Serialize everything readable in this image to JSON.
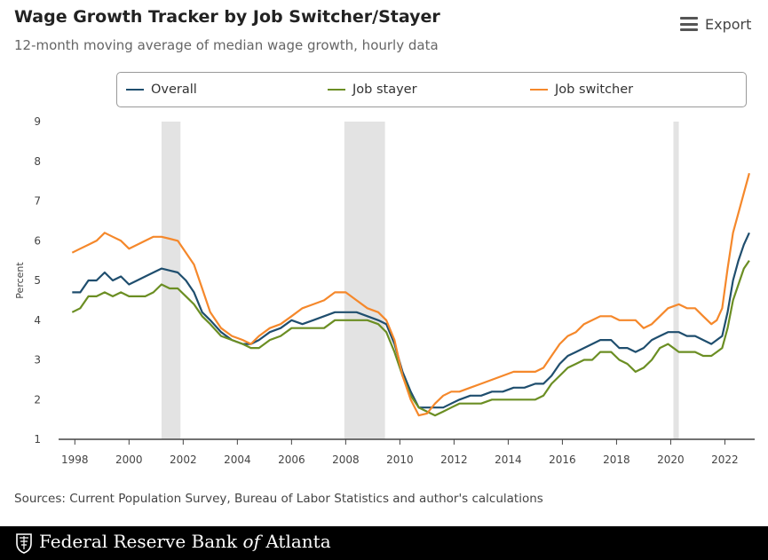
{
  "header": {
    "title": "Wage Growth Tracker by Job Switcher/Stayer",
    "subtitle": "12-month moving average of median wage growth, hourly data",
    "export_label": "Export"
  },
  "footer": {
    "sources": "Sources: Current Population Survey, Bureau of Labor Statistics and author's calculations",
    "bank_prefix": "Federal Reserve Bank ",
    "bank_of": "of",
    "bank_suffix": " Atlanta"
  },
  "colors": {
    "overall": "#1f4e6e",
    "stayer": "#6b8e23",
    "switcher": "#f5882b",
    "recession": "#e3e3e3"
  },
  "chart_data": {
    "type": "line",
    "title": "Wage Growth Tracker by Job Switcher/Stayer",
    "subtitle": "12-month moving average of median wage growth, hourly data",
    "xlabel": "",
    "ylabel": "Percent",
    "xlim": [
      1997.4,
      2023.1
    ],
    "ylim": [
      1,
      9
    ],
    "yticks": [
      1,
      2,
      3,
      4,
      5,
      6,
      7,
      8,
      9
    ],
    "xticks": [
      1998,
      2000,
      2002,
      2004,
      2006,
      2008,
      2010,
      2012,
      2014,
      2016,
      2018,
      2020,
      2022
    ],
    "legend_position": "top",
    "recessions": [
      [
        2001.2,
        2001.9
      ],
      [
        2007.95,
        2009.45
      ],
      [
        2020.1,
        2020.3
      ]
    ],
    "series": [
      {
        "name": "Overall",
        "key": "overall",
        "points": [
          [
            1997.9,
            4.7
          ],
          [
            1998.2,
            4.7
          ],
          [
            1998.5,
            5.0
          ],
          [
            1998.8,
            5.0
          ],
          [
            1999.1,
            5.2
          ],
          [
            1999.4,
            5.0
          ],
          [
            1999.7,
            5.1
          ],
          [
            2000.0,
            4.9
          ],
          [
            2000.3,
            5.0
          ],
          [
            2000.6,
            5.1
          ],
          [
            2000.9,
            5.2
          ],
          [
            2001.2,
            5.3
          ],
          [
            2001.5,
            5.25
          ],
          [
            2001.8,
            5.2
          ],
          [
            2002.1,
            5.0
          ],
          [
            2002.4,
            4.7
          ],
          [
            2002.7,
            4.2
          ],
          [
            2003.0,
            4.0
          ],
          [
            2003.4,
            3.7
          ],
          [
            2003.8,
            3.5
          ],
          [
            2004.2,
            3.4
          ],
          [
            2004.5,
            3.4
          ],
          [
            2004.8,
            3.5
          ],
          [
            2005.2,
            3.7
          ],
          [
            2005.6,
            3.8
          ],
          [
            2006.0,
            4.0
          ],
          [
            2006.4,
            3.9
          ],
          [
            2006.8,
            4.0
          ],
          [
            2007.2,
            4.1
          ],
          [
            2007.6,
            4.2
          ],
          [
            2008.0,
            4.2
          ],
          [
            2008.4,
            4.2
          ],
          [
            2008.8,
            4.1
          ],
          [
            2009.2,
            4.0
          ],
          [
            2009.5,
            3.9
          ],
          [
            2009.8,
            3.4
          ],
          [
            2010.1,
            2.7
          ],
          [
            2010.4,
            2.2
          ],
          [
            2010.7,
            1.8
          ],
          [
            2011.0,
            1.8
          ],
          [
            2011.3,
            1.8
          ],
          [
            2011.6,
            1.8
          ],
          [
            2011.9,
            1.9
          ],
          [
            2012.2,
            2.0
          ],
          [
            2012.6,
            2.1
          ],
          [
            2013.0,
            2.1
          ],
          [
            2013.4,
            2.2
          ],
          [
            2013.8,
            2.2
          ],
          [
            2014.2,
            2.3
          ],
          [
            2014.6,
            2.3
          ],
          [
            2015.0,
            2.4
          ],
          [
            2015.3,
            2.4
          ],
          [
            2015.6,
            2.6
          ],
          [
            2015.9,
            2.9
          ],
          [
            2016.2,
            3.1
          ],
          [
            2016.5,
            3.2
          ],
          [
            2016.8,
            3.3
          ],
          [
            2017.1,
            3.4
          ],
          [
            2017.4,
            3.5
          ],
          [
            2017.8,
            3.5
          ],
          [
            2018.1,
            3.3
          ],
          [
            2018.4,
            3.3
          ],
          [
            2018.7,
            3.2
          ],
          [
            2019.0,
            3.3
          ],
          [
            2019.3,
            3.5
          ],
          [
            2019.6,
            3.6
          ],
          [
            2019.9,
            3.7
          ],
          [
            2020.3,
            3.7
          ],
          [
            2020.6,
            3.6
          ],
          [
            2020.9,
            3.6
          ],
          [
            2021.2,
            3.5
          ],
          [
            2021.5,
            3.4
          ],
          [
            2021.7,
            3.5
          ],
          [
            2021.9,
            3.6
          ],
          [
            2022.1,
            4.2
          ],
          [
            2022.3,
            5.0
          ],
          [
            2022.5,
            5.5
          ],
          [
            2022.7,
            5.9
          ],
          [
            2022.9,
            6.2
          ]
        ]
      },
      {
        "name": "Job stayer",
        "key": "stayer",
        "points": [
          [
            1997.9,
            4.2
          ],
          [
            1998.2,
            4.3
          ],
          [
            1998.5,
            4.6
          ],
          [
            1998.8,
            4.6
          ],
          [
            1999.1,
            4.7
          ],
          [
            1999.4,
            4.6
          ],
          [
            1999.7,
            4.7
          ],
          [
            2000.0,
            4.6
          ],
          [
            2000.3,
            4.6
          ],
          [
            2000.6,
            4.6
          ],
          [
            2000.9,
            4.7
          ],
          [
            2001.2,
            4.9
          ],
          [
            2001.5,
            4.8
          ],
          [
            2001.8,
            4.8
          ],
          [
            2002.1,
            4.6
          ],
          [
            2002.4,
            4.4
          ],
          [
            2002.7,
            4.1
          ],
          [
            2003.0,
            3.9
          ],
          [
            2003.4,
            3.6
          ],
          [
            2003.8,
            3.5
          ],
          [
            2004.2,
            3.4
          ],
          [
            2004.5,
            3.3
          ],
          [
            2004.8,
            3.3
          ],
          [
            2005.2,
            3.5
          ],
          [
            2005.6,
            3.6
          ],
          [
            2006.0,
            3.8
          ],
          [
            2006.4,
            3.8
          ],
          [
            2006.8,
            3.8
          ],
          [
            2007.2,
            3.8
          ],
          [
            2007.6,
            4.0
          ],
          [
            2008.0,
            4.0
          ],
          [
            2008.4,
            4.0
          ],
          [
            2008.8,
            4.0
          ],
          [
            2009.2,
            3.9
          ],
          [
            2009.5,
            3.7
          ],
          [
            2009.8,
            3.2
          ],
          [
            2010.1,
            2.6
          ],
          [
            2010.4,
            2.1
          ],
          [
            2010.7,
            1.8
          ],
          [
            2011.0,
            1.7
          ],
          [
            2011.3,
            1.6
          ],
          [
            2011.6,
            1.7
          ],
          [
            2011.9,
            1.8
          ],
          [
            2012.2,
            1.9
          ],
          [
            2012.6,
            1.9
          ],
          [
            2013.0,
            1.9
          ],
          [
            2013.4,
            2.0
          ],
          [
            2013.8,
            2.0
          ],
          [
            2014.2,
            2.0
          ],
          [
            2014.6,
            2.0
          ],
          [
            2015.0,
            2.0
          ],
          [
            2015.3,
            2.1
          ],
          [
            2015.6,
            2.4
          ],
          [
            2015.9,
            2.6
          ],
          [
            2016.2,
            2.8
          ],
          [
            2016.5,
            2.9
          ],
          [
            2016.8,
            3.0
          ],
          [
            2017.1,
            3.0
          ],
          [
            2017.4,
            3.2
          ],
          [
            2017.8,
            3.2
          ],
          [
            2018.1,
            3.0
          ],
          [
            2018.4,
            2.9
          ],
          [
            2018.7,
            2.7
          ],
          [
            2019.0,
            2.8
          ],
          [
            2019.3,
            3.0
          ],
          [
            2019.6,
            3.3
          ],
          [
            2019.9,
            3.4
          ],
          [
            2020.3,
            3.2
          ],
          [
            2020.6,
            3.2
          ],
          [
            2020.9,
            3.2
          ],
          [
            2021.2,
            3.1
          ],
          [
            2021.5,
            3.1
          ],
          [
            2021.7,
            3.2
          ],
          [
            2021.9,
            3.3
          ],
          [
            2022.1,
            3.8
          ],
          [
            2022.3,
            4.5
          ],
          [
            2022.5,
            4.9
          ],
          [
            2022.7,
            5.3
          ],
          [
            2022.9,
            5.5
          ]
        ]
      },
      {
        "name": "Job switcher",
        "key": "switcher",
        "points": [
          [
            1997.9,
            5.7
          ],
          [
            1998.2,
            5.8
          ],
          [
            1998.5,
            5.9
          ],
          [
            1998.8,
            6.0
          ],
          [
            1999.1,
            6.2
          ],
          [
            1999.4,
            6.1
          ],
          [
            1999.7,
            6.0
          ],
          [
            2000.0,
            5.8
          ],
          [
            2000.3,
            5.9
          ],
          [
            2000.6,
            6.0
          ],
          [
            2000.9,
            6.1
          ],
          [
            2001.2,
            6.1
          ],
          [
            2001.5,
            6.05
          ],
          [
            2001.8,
            6.0
          ],
          [
            2002.1,
            5.7
          ],
          [
            2002.4,
            5.4
          ],
          [
            2002.7,
            4.8
          ],
          [
            2003.0,
            4.2
          ],
          [
            2003.4,
            3.8
          ],
          [
            2003.8,
            3.6
          ],
          [
            2004.2,
            3.5
          ],
          [
            2004.5,
            3.4
          ],
          [
            2004.8,
            3.6
          ],
          [
            2005.2,
            3.8
          ],
          [
            2005.6,
            3.9
          ],
          [
            2006.0,
            4.1
          ],
          [
            2006.4,
            4.3
          ],
          [
            2006.8,
            4.4
          ],
          [
            2007.2,
            4.5
          ],
          [
            2007.6,
            4.7
          ],
          [
            2008.0,
            4.7
          ],
          [
            2008.4,
            4.5
          ],
          [
            2008.8,
            4.3
          ],
          [
            2009.2,
            4.2
          ],
          [
            2009.5,
            4.0
          ],
          [
            2009.8,
            3.5
          ],
          [
            2010.1,
            2.6
          ],
          [
            2010.4,
            2.0
          ],
          [
            2010.7,
            1.6
          ],
          [
            2011.0,
            1.65
          ],
          [
            2011.3,
            1.9
          ],
          [
            2011.6,
            2.1
          ],
          [
            2011.9,
            2.2
          ],
          [
            2012.2,
            2.2
          ],
          [
            2012.6,
            2.3
          ],
          [
            2013.0,
            2.4
          ],
          [
            2013.4,
            2.5
          ],
          [
            2013.8,
            2.6
          ],
          [
            2014.2,
            2.7
          ],
          [
            2014.6,
            2.7
          ],
          [
            2015.0,
            2.7
          ],
          [
            2015.3,
            2.8
          ],
          [
            2015.6,
            3.1
          ],
          [
            2015.9,
            3.4
          ],
          [
            2016.2,
            3.6
          ],
          [
            2016.5,
            3.7
          ],
          [
            2016.8,
            3.9
          ],
          [
            2017.1,
            4.0
          ],
          [
            2017.4,
            4.1
          ],
          [
            2017.8,
            4.1
          ],
          [
            2018.1,
            4.0
          ],
          [
            2018.4,
            4.0
          ],
          [
            2018.7,
            4.0
          ],
          [
            2019.0,
            3.8
          ],
          [
            2019.3,
            3.9
          ],
          [
            2019.6,
            4.1
          ],
          [
            2019.9,
            4.3
          ],
          [
            2020.3,
            4.4
          ],
          [
            2020.6,
            4.3
          ],
          [
            2020.9,
            4.3
          ],
          [
            2021.2,
            4.1
          ],
          [
            2021.5,
            3.9
          ],
          [
            2021.7,
            4.0
          ],
          [
            2021.9,
            4.3
          ],
          [
            2022.1,
            5.3
          ],
          [
            2022.3,
            6.2
          ],
          [
            2022.5,
            6.7
          ],
          [
            2022.7,
            7.2
          ],
          [
            2022.9,
            7.7
          ]
        ]
      }
    ]
  }
}
